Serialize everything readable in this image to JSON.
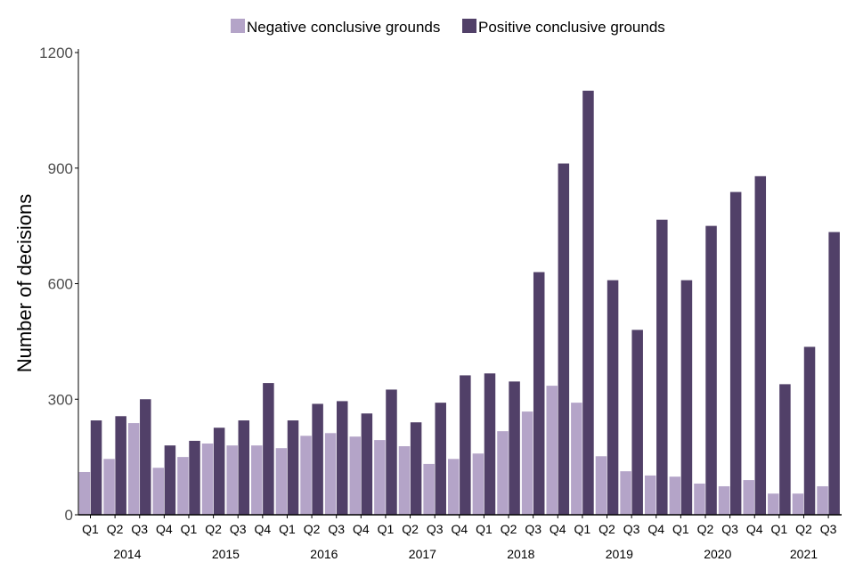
{
  "chart_data": {
    "type": "bar",
    "title": "",
    "xlabel": "",
    "ylabel": "Number of decisions",
    "ylim": [
      0,
      1200
    ],
    "yticks": [
      0,
      300,
      600,
      900,
      1200
    ],
    "grid": false,
    "legend_position": "top-center",
    "years": [
      {
        "label": "2014",
        "count": 4
      },
      {
        "label": "2015",
        "count": 4
      },
      {
        "label": "2016",
        "count": 4
      },
      {
        "label": "2017",
        "count": 4
      },
      {
        "label": "2018",
        "count": 4
      },
      {
        "label": "2019",
        "count": 4
      },
      {
        "label": "2020",
        "count": 4
      },
      {
        "label": "2021",
        "count": 3
      }
    ],
    "categories": [
      "Q1",
      "Q2",
      "Q3",
      "Q4",
      "Q1",
      "Q2",
      "Q3",
      "Q4",
      "Q1",
      "Q2",
      "Q3",
      "Q4",
      "Q1",
      "Q2",
      "Q3",
      "Q4",
      "Q1",
      "Q2",
      "Q3",
      "Q4",
      "Q1",
      "Q2",
      "Q3",
      "Q4",
      "Q1",
      "Q2",
      "Q3",
      "Q4",
      "Q1",
      "Q2",
      "Q3"
    ],
    "series": [
      {
        "name": "Negative conclusive grounds",
        "color": "#b4a4c8",
        "values": [
          111,
          145,
          238,
          122,
          150,
          185,
          180,
          180,
          173,
          205,
          212,
          203,
          194,
          178,
          132,
          145,
          159,
          217,
          268,
          335,
          291,
          152,
          113,
          102,
          99,
          81,
          74,
          90,
          55,
          55,
          74
        ]
      },
      {
        "name": "Positive conclusive grounds",
        "color": "#514068",
        "values": [
          245,
          256,
          300,
          180,
          192,
          226,
          245,
          342,
          245,
          288,
          295,
          263,
          325,
          240,
          291,
          362,
          367,
          346,
          630,
          912,
          1101,
          609,
          480,
          766,
          609,
          750,
          838,
          879,
          339,
          436,
          734
        ]
      }
    ]
  }
}
